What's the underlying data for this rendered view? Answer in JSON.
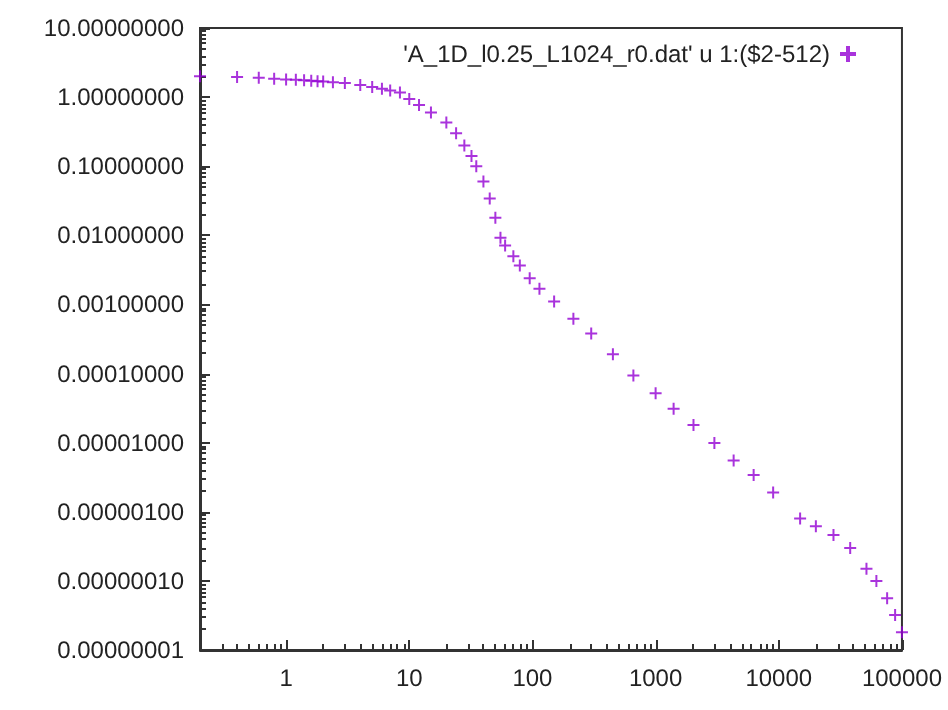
{
  "chart_data": {
    "type": "scatter",
    "log": "xy",
    "marker": "cross",
    "grid": false,
    "legend": "top right",
    "xlim": [
      0.2,
      100000
    ],
    "ylim": [
      1e-08,
      10
    ],
    "xticks": [
      1,
      10,
      100,
      1000,
      10000,
      100000
    ],
    "yticks": [
      {
        "value": 1e-08,
        "label": "0.00000001"
      },
      {
        "value": 1e-07,
        "label": "0.00000010"
      },
      {
        "value": 1e-06,
        "label": "0.00000100"
      },
      {
        "value": 1e-05,
        "label": "0.00001000"
      },
      {
        "value": 0.0001,
        "label": "0.00010000"
      },
      {
        "value": 0.001,
        "label": "0.00100000"
      },
      {
        "value": 0.01,
        "label": "0.01000000"
      },
      {
        "value": 0.1,
        "label": "0.10000000"
      },
      {
        "value": 1,
        "label": "1.00000000"
      },
      {
        "value": 10,
        "label": "10.00000000"
      }
    ],
    "series": [
      {
        "name": "'A_1D_l0.25_L1024_r0.dat' u 1:($2-512)",
        "color": "#9400d3",
        "x": [
          0.2,
          0.4,
          0.6,
          0.8,
          1.0,
          1.2,
          1.4,
          1.6,
          1.8,
          2.0,
          2.4,
          3,
          4,
          5,
          6,
          7,
          8.4,
          10,
          12,
          15,
          20,
          24,
          28,
          32,
          35,
          40,
          45,
          50,
          55,
          60,
          70,
          79,
          95,
          114,
          150,
          215,
          300,
          450,
          660,
          1000,
          1400,
          2030,
          3000,
          4300,
          6250,
          9000,
          14900,
          20000,
          27800,
          38000,
          51500,
          62000,
          75800,
          88000,
          100000
        ],
        "values": [
          2.0,
          1.95,
          1.9,
          1.85,
          1.8,
          1.78,
          1.75,
          1.72,
          1.7,
          1.68,
          1.64,
          1.6,
          1.5,
          1.4,
          1.32,
          1.25,
          1.17,
          0.94,
          0.77,
          0.6,
          0.43,
          0.3,
          0.2,
          0.14,
          0.1,
          0.06,
          0.034,
          0.018,
          0.0092,
          0.0071,
          0.005,
          0.00366,
          0.0024,
          0.00168,
          0.0011,
          0.00062,
          0.00038,
          0.00019,
          9.4e-05,
          5.2e-05,
          3.1e-05,
          1.8e-05,
          9.9e-06,
          5.5e-06,
          3.4e-06,
          1.9e-06,
          8e-07,
          6.2e-07,
          4.6e-07,
          3e-07,
          1.5e-07,
          1e-07,
          5.6e-08,
          3.2e-08,
          1.8e-08
        ]
      }
    ]
  }
}
